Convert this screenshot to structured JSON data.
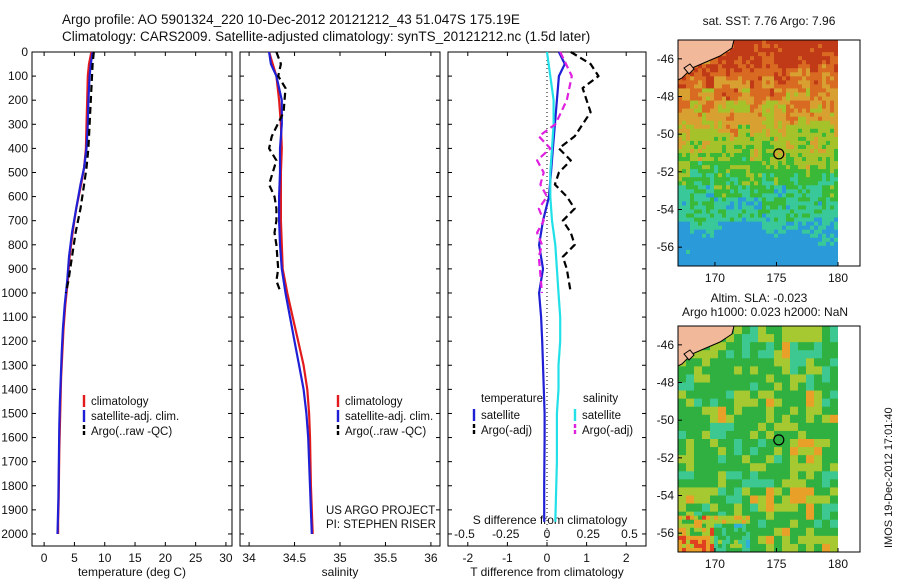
{
  "header": {
    "line1": "Argo profile: AO 5901324_220 10-Dec-2012 20121212_43 51.047S 175.19E",
    "line2": "Climatology: CARS2009. Satellite-adjusted climatology: synTS_20121212.nc (1.5d later)"
  },
  "credits": {
    "line1": "US ARGO PROJECT",
    "line2": "PI: STEPHEN RISER"
  },
  "stamp": "IMOS 19-Dec-2012 17:01:40",
  "colors": {
    "climatology": "#e31a1c",
    "satellite": "#1f1fd6",
    "argo": "#000000",
    "satellite_salinity": "#22e0e8",
    "argo_salinity": "#e020e0"
  },
  "chart_data": [
    {
      "type": "line",
      "xlabel": "temperature (deg C)",
      "ylabel": "",
      "xlim": [
        -2,
        31
      ],
      "ylim": [
        2050,
        0
      ],
      "xticks": [
        0,
        5,
        10,
        15,
        20,
        25,
        30
      ],
      "yticks": [
        0,
        100,
        200,
        300,
        400,
        500,
        600,
        700,
        800,
        900,
        1000,
        1100,
        1200,
        1300,
        1400,
        1500,
        1600,
        1700,
        1800,
        1900,
        2000
      ],
      "legend": [
        "climatology",
        "satellite-adj. clim.",
        "Argo(..raw -QC)"
      ],
      "series": [
        {
          "name": "climatology",
          "style": "solid",
          "color": "#e31a1c",
          "x": [
            7.8,
            7.4,
            7.2,
            7.1,
            7.0,
            6.9,
            6.6,
            6.1,
            5.3,
            4.7,
            4.2,
            3.9,
            3.5,
            3.2,
            3.0,
            2.8,
            2.7,
            2.6,
            2.5,
            2.45,
            2.4,
            2.35,
            2.3,
            2.3
          ],
          "y": [
            0,
            50,
            100,
            200,
            300,
            400,
            480,
            550,
            650,
            750,
            850,
            950,
            1050,
            1150,
            1250,
            1350,
            1450,
            1550,
            1650,
            1750,
            1850,
            1900,
            1950,
            2000
          ]
        },
        {
          "name": "satellite-adj. clim.",
          "style": "solid",
          "color": "#1f1fd6",
          "x": [
            8.0,
            7.7,
            7.5,
            7.3,
            7.2,
            7.0,
            6.6,
            6.0,
            5.3,
            4.6,
            4.1,
            3.8,
            3.4,
            3.1,
            2.9,
            2.75,
            2.6,
            2.5,
            2.45,
            2.4,
            2.35,
            2.3,
            2.25,
            2.2
          ],
          "y": [
            0,
            50,
            100,
            200,
            300,
            400,
            480,
            550,
            650,
            750,
            850,
            950,
            1050,
            1150,
            1250,
            1350,
            1450,
            1550,
            1650,
            1750,
            1850,
            1900,
            1950,
            2000
          ]
        },
        {
          "name": "Argo(..raw -QC)",
          "style": "dashed",
          "color": "#000000",
          "x": [
            8.2,
            8.0,
            7.9,
            7.7,
            7.5,
            7.3,
            7.0,
            6.6,
            6.0,
            5.2,
            4.6,
            4.0,
            3.6
          ],
          "y": [
            0,
            50,
            100,
            200,
            300,
            400,
            480,
            550,
            650,
            750,
            850,
            950,
            1000
          ]
        }
      ]
    },
    {
      "type": "line",
      "xlabel": "salinity",
      "ylabel": "",
      "xlim": [
        33.9,
        36.1
      ],
      "ylim": [
        2050,
        0
      ],
      "xticks": [
        34,
        34.5,
        35,
        35.5,
        36
      ],
      "legend": [
        "climatology",
        "satellite-adj. clim.",
        "Argo(..raw -QC)"
      ],
      "series": [
        {
          "name": "climatology",
          "style": "solid",
          "color": "#e31a1c",
          "x": [
            34.22,
            34.26,
            34.3,
            34.33,
            34.35,
            34.36,
            34.35,
            34.35,
            34.35,
            34.36,
            34.37,
            34.42,
            34.48,
            34.54,
            34.6,
            34.64,
            34.66,
            34.67,
            34.68,
            34.7
          ],
          "y": [
            0,
            50,
            100,
            200,
            300,
            400,
            500,
            600,
            700,
            800,
            900,
            1000,
            1100,
            1200,
            1300,
            1400,
            1500,
            1600,
            1800,
            2000
          ]
        },
        {
          "name": "satellite-adj. clim.",
          "style": "solid",
          "color": "#1f1fd6",
          "x": [
            34.22,
            34.24,
            34.3,
            34.36,
            34.36,
            34.34,
            34.34,
            34.33,
            34.33,
            34.34,
            34.36,
            34.4,
            34.45,
            34.5,
            34.55,
            34.6,
            34.63,
            34.65,
            34.67,
            34.69
          ],
          "y": [
            0,
            50,
            100,
            200,
            300,
            400,
            500,
            600,
            700,
            800,
            900,
            1000,
            1100,
            1200,
            1300,
            1400,
            1500,
            1600,
            1800,
            2000
          ]
        },
        {
          "name": "Argo(..raw -QC)",
          "style": "dashed",
          "color": "#000000",
          "x": [
            34.3,
            34.35,
            34.32,
            34.4,
            34.38,
            34.25,
            34.22,
            34.3,
            34.22,
            34.28,
            34.3,
            34.3,
            34.28,
            34.3,
            34.31,
            34.32,
            34.3,
            34.35
          ],
          "y": [
            0,
            50,
            100,
            150,
            250,
            350,
            400,
            450,
            550,
            600,
            650,
            700,
            750,
            800,
            850,
            900,
            950,
            1000
          ]
        }
      ]
    },
    {
      "type": "line",
      "xlabel": "T difference from climatology",
      "x2label": "S difference from climatology",
      "ylabel": "",
      "xlim": [
        -2.5,
        2.5
      ],
      "x2lim": [
        -0.6,
        0.6
      ],
      "ylim": [
        2050,
        0
      ],
      "xticks": [
        -2,
        -1,
        0,
        1,
        2
      ],
      "x2ticks": [
        -0.5,
        -0.25,
        0,
        0.25,
        0.5
      ],
      "legend_groups": [
        {
          "title": "temperature",
          "items": [
            "satellite",
            "Argo(-adj)"
          ]
        },
        {
          "title": "salinity",
          "items": [
            "satellite",
            "Argo(-adj)"
          ]
        }
      ],
      "series": [
        {
          "name": "temperature satellite",
          "style": "solid",
          "color": "#1f1fd6",
          "x": [
            0.3,
            0.45,
            0.3,
            0.25,
            0.2,
            0.15,
            0.1,
            0.05,
            -0.1,
            -0.2,
            -0.1,
            -0.2,
            -0.15,
            -0.12,
            -0.1,
            -0.08,
            -0.06,
            -0.06,
            -0.07,
            -0.07
          ],
          "y": [
            0,
            50,
            100,
            200,
            300,
            400,
            500,
            600,
            700,
            800,
            900,
            1000,
            1100,
            1200,
            1300,
            1400,
            1500,
            1600,
            1800,
            1950
          ]
        },
        {
          "name": "temperature Argo(-adj)",
          "style": "dashed",
          "color": "#000000",
          "x": [
            0.6,
            1.1,
            1.3,
            0.9,
            1.1,
            0.7,
            0.3,
            0.6,
            0.3,
            0.2,
            0.5,
            0.7,
            0.4,
            0.6,
            0.7,
            0.4,
            0.5,
            0.6
          ],
          "y": [
            0,
            50,
            100,
            150,
            250,
            350,
            400,
            450,
            500,
            550,
            600,
            650,
            700,
            750,
            800,
            850,
            900,
            1000
          ]
        },
        {
          "name": "salinity satellite",
          "style": "solid",
          "color": "#22e0e8",
          "x": [
            0,
            0.02,
            0.04,
            0.04,
            0.03,
            0.02,
            0.02,
            0.03,
            0.05,
            0.06,
            0.07,
            0.08,
            0.08,
            0.07,
            0.07,
            0.06,
            0.06,
            0.05
          ],
          "y": [
            0,
            100,
            200,
            300,
            400,
            500,
            600,
            700,
            800,
            900,
            1000,
            1100,
            1200,
            1300,
            1400,
            1500,
            1700,
            1950
          ]
        },
        {
          "name": "salinity Argo(-adj)",
          "style": "dashed",
          "color": "#e020e0",
          "x": [
            0.08,
            0.15,
            0.12,
            0.05,
            -0.05,
            0.02,
            -0.06,
            -0.02,
            -0.04,
            0.0,
            -0.05,
            -0.02,
            -0.06,
            -0.03,
            -0.05,
            -0.03
          ],
          "y": [
            0,
            100,
            200,
            300,
            350,
            400,
            450,
            500,
            550,
            600,
            650,
            700,
            750,
            800,
            850,
            1000
          ]
        }
      ]
    },
    {
      "type": "heatmap",
      "title": "sat. SST: 7.76 Argo: 7.96",
      "x_range": [
        167,
        180
      ],
      "y_range": [
        -57,
        -45
      ],
      "xticks": [
        170,
        175,
        180
      ],
      "yticks": [
        -46,
        -48,
        -50,
        -52,
        -54,
        -56
      ],
      "marker": {
        "lon": 175.19,
        "lat": -51.047
      }
    },
    {
      "type": "heatmap",
      "title": "Altim. SLA: -0.023",
      "subtitle": "Argo h1000: 0.023 h2000: NaN",
      "x_range": [
        167,
        180
      ],
      "y_range": [
        -57,
        -45
      ],
      "xticks": [
        170,
        175,
        180
      ],
      "yticks": [
        -46,
        -48,
        -50,
        -52,
        -54,
        -56
      ],
      "marker": {
        "lon": 175.19,
        "lat": -51.047
      }
    }
  ]
}
